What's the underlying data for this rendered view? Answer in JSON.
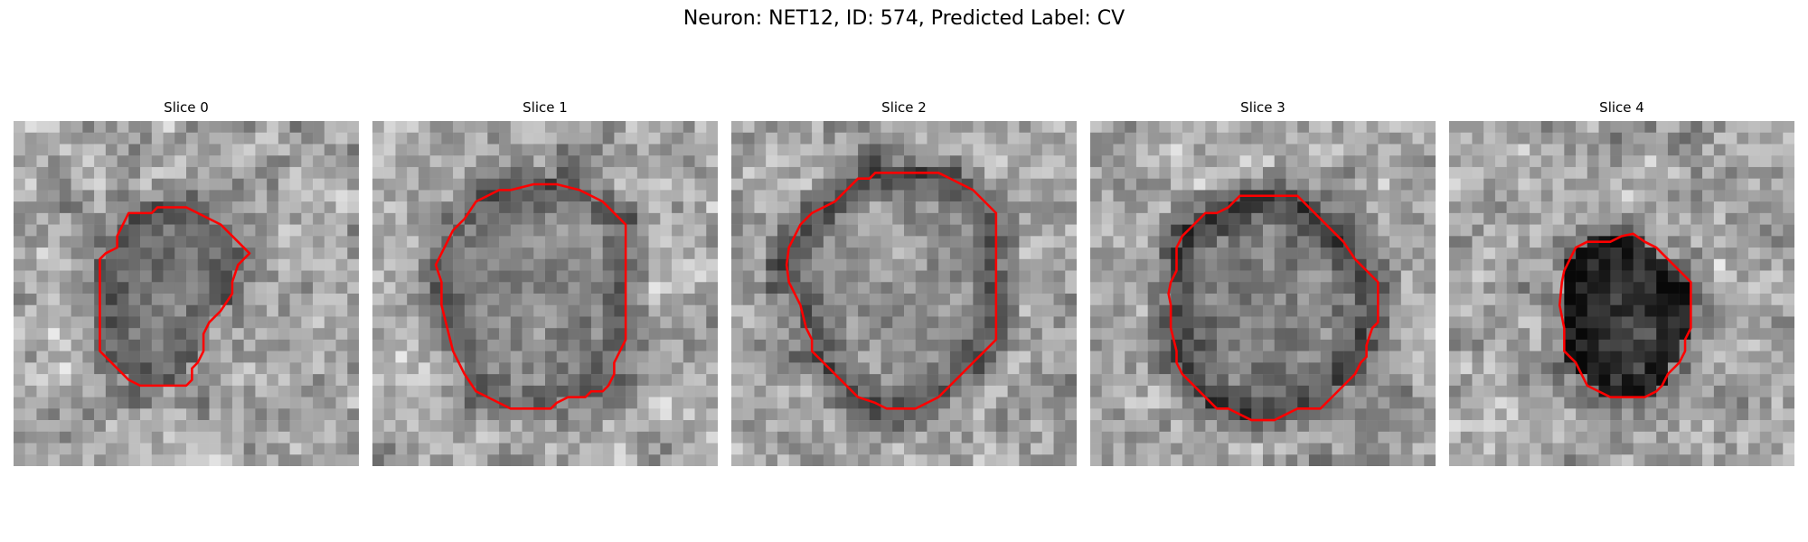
{
  "figure": {
    "title": "Neuron: NET12, ID: 574, Predicted Label: CV"
  },
  "panels": [
    {
      "title": "Slice 0"
    },
    {
      "title": "Slice 1"
    },
    {
      "title": "Slice 2"
    },
    {
      "title": "Slice 3"
    },
    {
      "title": "Slice 4"
    }
  ],
  "colors": {
    "contour": "#ff0000",
    "background": "#ffffff"
  }
}
